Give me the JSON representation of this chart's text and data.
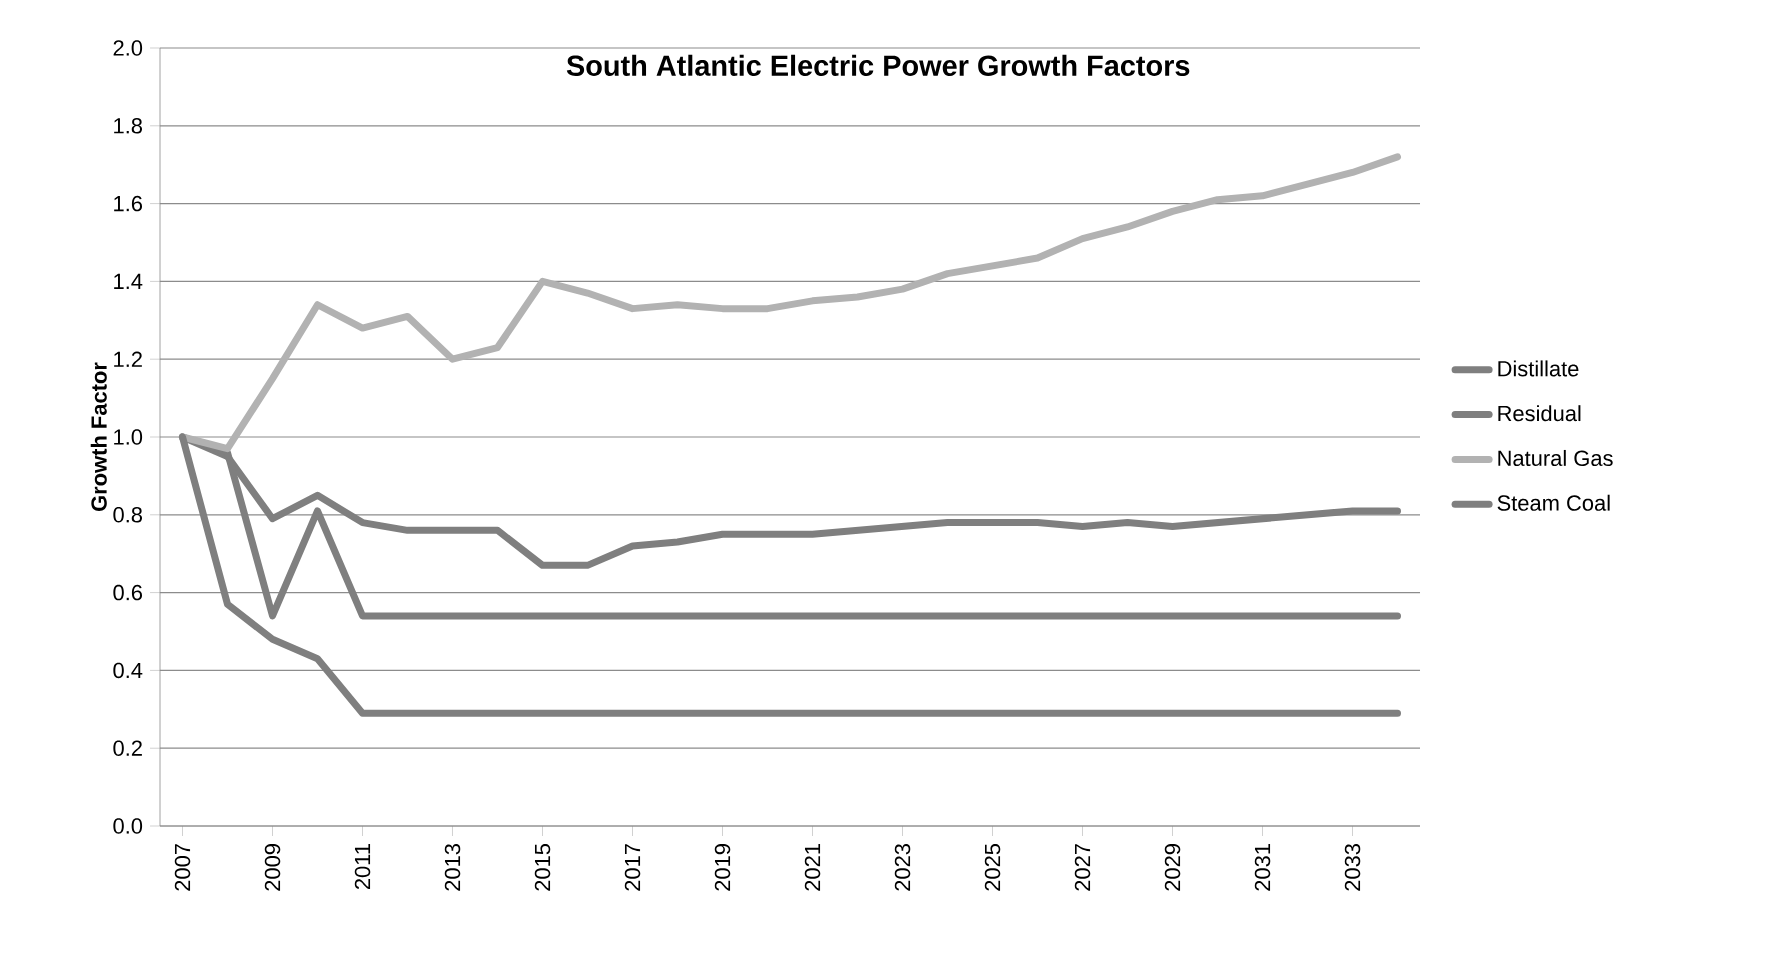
{
  "chart_data": {
    "type": "line",
    "title": "South Atlantic Electric Power Growth Factors",
    "ylabel": "Growth Factor",
    "x": [
      2007,
      2008,
      2009,
      2010,
      2011,
      2012,
      2013,
      2014,
      2015,
      2016,
      2017,
      2018,
      2019,
      2020,
      2021,
      2022,
      2023,
      2024,
      2025,
      2026,
      2027,
      2028,
      2029,
      2030,
      2031,
      2032,
      2033,
      2034
    ],
    "series": [
      {
        "name": "Distillate",
        "color": "#7f7f7f",
        "values": [
          1.0,
          0.95,
          0.79,
          0.85,
          0.78,
          0.76,
          0.76,
          0.76,
          0.67,
          0.67,
          0.72,
          0.73,
          0.75,
          0.75,
          0.75,
          0.76,
          0.77,
          0.78,
          0.78,
          0.78,
          0.77,
          0.78,
          0.77,
          0.78,
          0.79,
          0.8,
          0.81,
          0.81
        ]
      },
      {
        "name": "Residual",
        "color": "#7f7f7f",
        "values": [
          1.0,
          0.96,
          0.54,
          0.81,
          0.54,
          0.54,
          0.54,
          0.54,
          0.54,
          0.54,
          0.54,
          0.54,
          0.54,
          0.54,
          0.54,
          0.54,
          0.54,
          0.54,
          0.54,
          0.54,
          0.54,
          0.54,
          0.54,
          0.54,
          0.54,
          0.54,
          0.54,
          0.54
        ]
      },
      {
        "name": "Natural Gas",
        "color": "#b2b2b2",
        "values": [
          1.0,
          0.97,
          1.15,
          1.34,
          1.28,
          1.31,
          1.2,
          1.23,
          1.4,
          1.37,
          1.33,
          1.34,
          1.33,
          1.33,
          1.35,
          1.36,
          1.38,
          1.42,
          1.44,
          1.46,
          1.51,
          1.54,
          1.58,
          1.61,
          1.62,
          1.65,
          1.68,
          1.72
        ]
      },
      {
        "name": "Steam Coal",
        "color": "#7f7f7f",
        "values": [
          1.0,
          0.57,
          0.48,
          0.43,
          0.29,
          0.29,
          0.29,
          0.29,
          0.29,
          0.29,
          0.29,
          0.29,
          0.29,
          0.29,
          0.29,
          0.29,
          0.29,
          0.29,
          0.29,
          0.29,
          0.29,
          0.29,
          0.29,
          0.29,
          0.29,
          0.29,
          0.29,
          0.29
        ]
      }
    ],
    "xlim": [
      2006.5,
      2034.5
    ],
    "xticks": [
      2007,
      2009,
      2011,
      2013,
      2015,
      2017,
      2019,
      2021,
      2023,
      2025,
      2027,
      2029,
      2031,
      2033
    ],
    "ylim": [
      0,
      2.0
    ],
    "yticks": [
      {
        "value": 0,
        "label": "0.0"
      },
      {
        "value": 0.2,
        "label": "0.2"
      },
      {
        "value": 0.4,
        "label": "0.4"
      },
      {
        "value": 0.6,
        "label": "0.6"
      },
      {
        "value": 0.8,
        "label": "0.8"
      },
      {
        "value": 1.0,
        "label": "1.0"
      },
      {
        "value": 1.2,
        "label": "1.2"
      },
      {
        "value": 1.4,
        "label": "1.4"
      },
      {
        "value": 1.6,
        "label": "1.6"
      },
      {
        "value": 1.8,
        "label": "1.8"
      },
      {
        "value": 2.0,
        "label": "2.0"
      }
    ],
    "grid": "y",
    "legend": "right",
    "marker": "none",
    "line_style": "solid"
  }
}
